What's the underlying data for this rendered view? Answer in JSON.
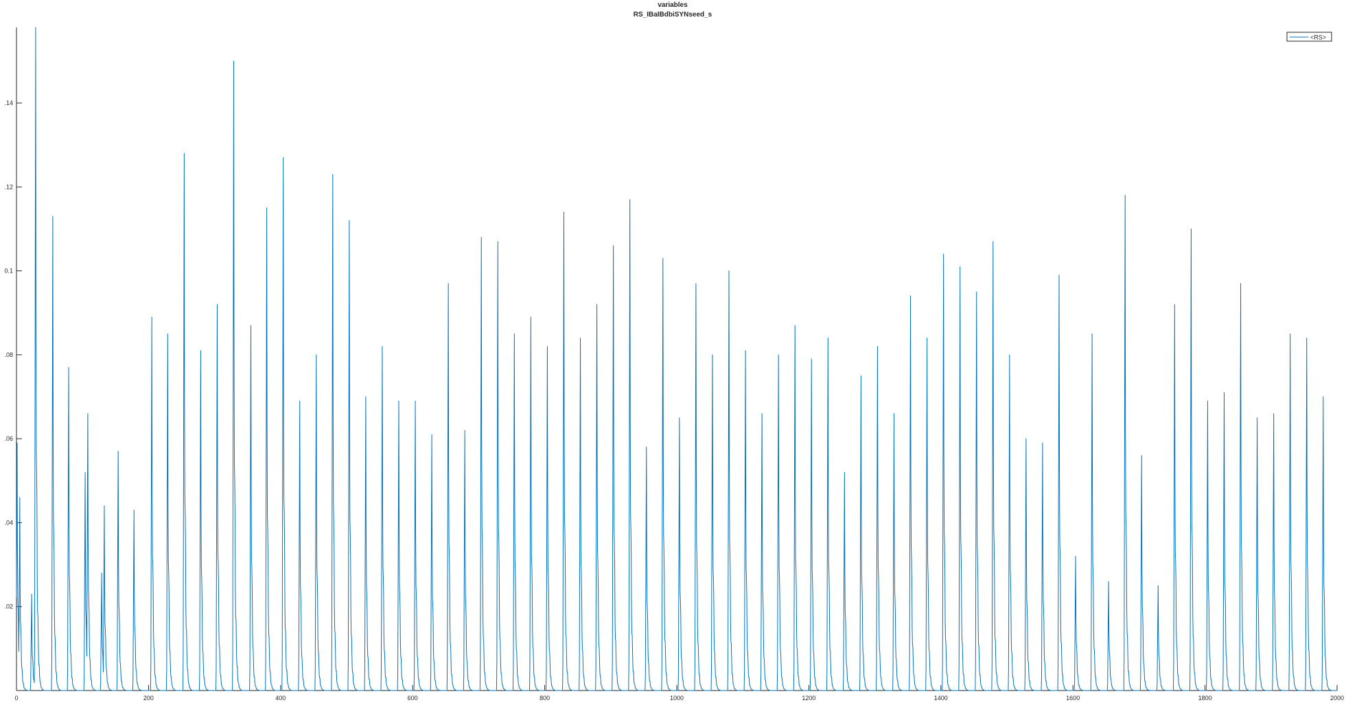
{
  "chart_data": {
    "type": "line",
    "title": "variables",
    "subtitle": "RS_IBaIBdbiSYNseed_s",
    "xlabel": "",
    "ylabel": "",
    "xlim": [
      0,
      2000
    ],
    "ylim": [
      0,
      0.158
    ],
    "x_ticks": [
      0,
      200,
      400,
      600,
      800,
      1000,
      1200,
      1400,
      1600,
      1800,
      2000
    ],
    "y_ticks": [
      0.02,
      0.04,
      0.06,
      0.08,
      0.1,
      0.12,
      0.14
    ],
    "x_tick_labels": [
      "0",
      "200",
      "400",
      "600",
      "800",
      "1000",
      "1200",
      "1400",
      "1600",
      "1800",
      "2000"
    ],
    "y_tick_labels": [
      ".02",
      ".04",
      ".06",
      ".08",
      "0.1",
      ".12",
      ".14"
    ],
    "grid": false,
    "legend": {
      "position": "top-right",
      "entries": [
        "<RS>"
      ]
    },
    "series": [
      {
        "name": "<RS>",
        "color": "#0072BD",
        "peaks": [
          [
            1,
            0.059
          ],
          [
            5,
            0.046
          ],
          [
            23,
            0.023
          ],
          [
            29,
            0.158
          ],
          [
            55,
            0.113
          ],
          [
            79,
            0.077
          ],
          [
            104,
            0.052
          ],
          [
            108,
            0.066
          ],
          [
            129,
            0.028
          ],
          [
            133,
            0.044
          ],
          [
            154,
            0.057
          ],
          [
            178,
            0.043
          ],
          [
            205,
            0.089
          ],
          [
            229,
            0.085
          ],
          [
            254,
            0.128
          ],
          [
            279,
            0.081
          ],
          [
            304,
            0.092
          ],
          [
            329,
            0.15
          ],
          [
            355,
            0.087
          ],
          [
            379,
            0.115
          ],
          [
            404,
            0.127
          ],
          [
            429,
            0.069
          ],
          [
            454,
            0.08
          ],
          [
            479,
            0.123
          ],
          [
            504,
            0.112
          ],
          [
            529,
            0.07
          ],
          [
            554,
            0.082
          ],
          [
            579,
            0.069
          ],
          [
            604,
            0.069
          ],
          [
            629,
            0.061
          ],
          [
            654,
            0.097
          ],
          [
            679,
            0.062
          ],
          [
            704,
            0.108
          ],
          [
            729,
            0.107
          ],
          [
            754,
            0.085
          ],
          [
            779,
            0.089
          ],
          [
            804,
            0.082
          ],
          [
            829,
            0.114
          ],
          [
            854,
            0.084
          ],
          [
            879,
            0.092
          ],
          [
            904,
            0.106
          ],
          [
            929,
            0.117
          ],
          [
            954,
            0.058
          ],
          [
            979,
            0.103
          ],
          [
            1004,
            0.065
          ],
          [
            1029,
            0.097
          ],
          [
            1054,
            0.08
          ],
          [
            1079,
            0.1
          ],
          [
            1104,
            0.081
          ],
          [
            1129,
            0.066
          ],
          [
            1154,
            0.08
          ],
          [
            1179,
            0.087
          ],
          [
            1204,
            0.079
          ],
          [
            1229,
            0.084
          ],
          [
            1254,
            0.052
          ],
          [
            1279,
            0.075
          ],
          [
            1304,
            0.082
          ],
          [
            1329,
            0.066
          ],
          [
            1354,
            0.094
          ],
          [
            1379,
            0.084
          ],
          [
            1404,
            0.104
          ],
          [
            1429,
            0.101
          ],
          [
            1454,
            0.095
          ],
          [
            1479,
            0.107
          ],
          [
            1504,
            0.08
          ],
          [
            1529,
            0.06
          ],
          [
            1554,
            0.059
          ],
          [
            1579,
            0.099
          ],
          [
            1604,
            0.032
          ],
          [
            1629,
            0.085
          ],
          [
            1654,
            0.026
          ],
          [
            1679,
            0.118
          ],
          [
            1704,
            0.056
          ],
          [
            1729,
            0.025
          ],
          [
            1754,
            0.092
          ],
          [
            1779,
            0.11
          ],
          [
            1804,
            0.069
          ],
          [
            1829,
            0.071
          ],
          [
            1854,
            0.097
          ],
          [
            1879,
            0.065
          ],
          [
            1904,
            0.066
          ],
          [
            1929,
            0.085
          ],
          [
            1954,
            0.084
          ],
          [
            1979,
            0.07
          ]
        ]
      }
    ]
  }
}
